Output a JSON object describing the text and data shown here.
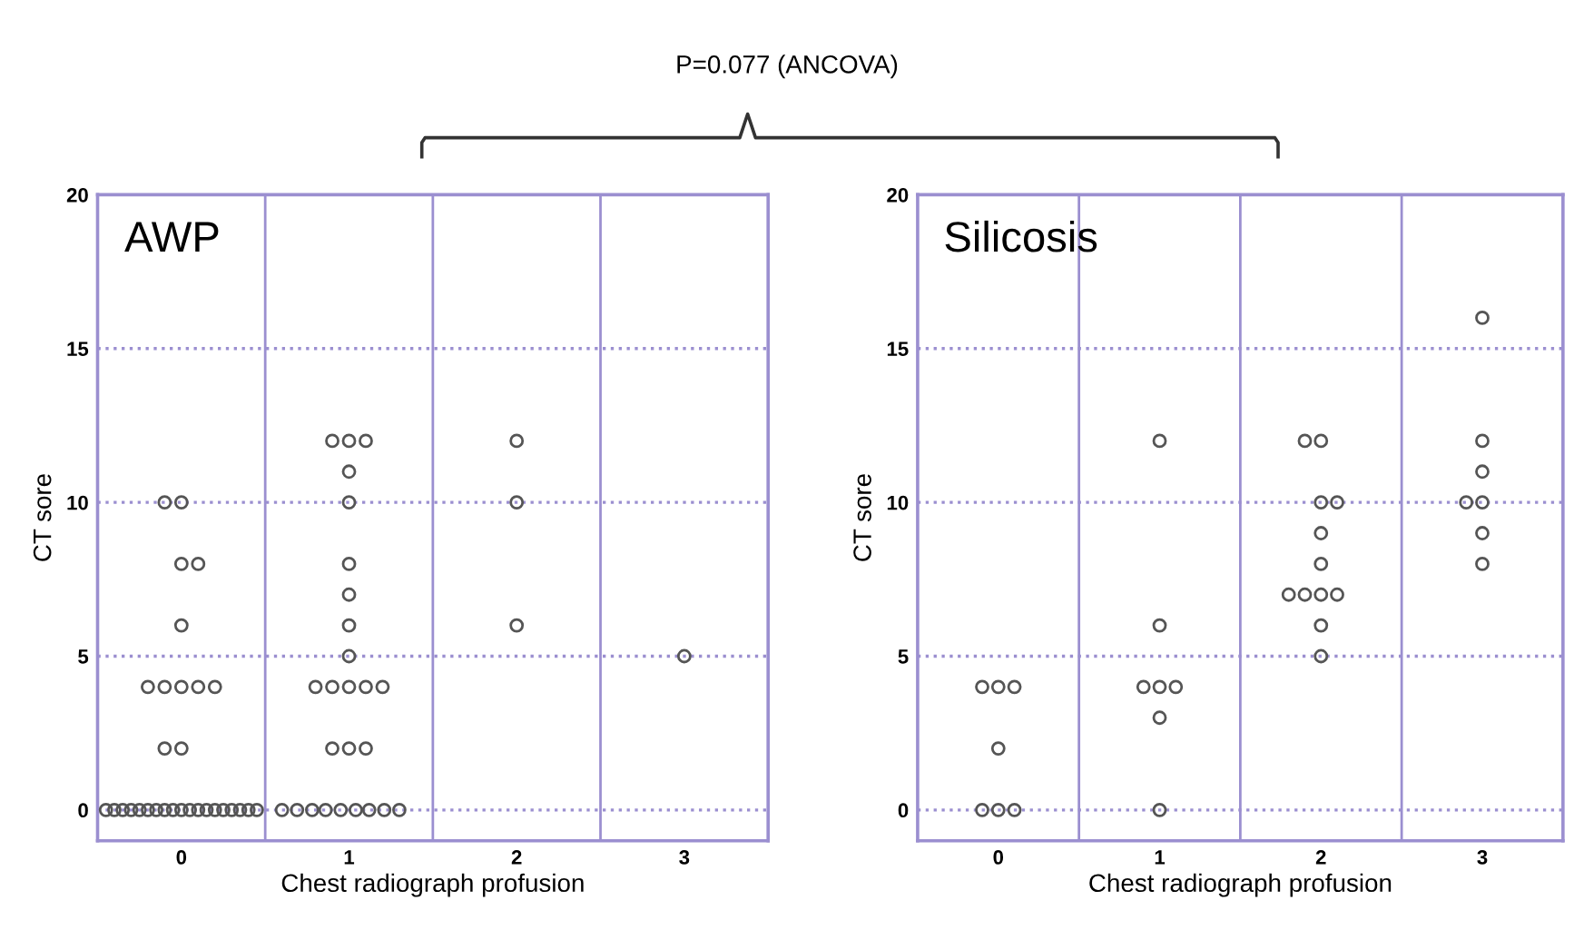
{
  "chart_data": [
    {
      "type": "scatter",
      "title": "AWP",
      "xlabel": "Chest radiograph profusion",
      "ylabel": "CT sore",
      "xlim": [
        -0.5,
        3.5
      ],
      "xticks": [
        0,
        1,
        2,
        3
      ],
      "ylim": [
        -1,
        20
      ],
      "yticks": [
        0,
        5,
        10,
        15,
        20
      ],
      "grid": "y",
      "marker": "circle",
      "annotations": [
        "P=0.077 (ANCOVA)"
      ],
      "ref_lines": [
        {
          "axis": "x",
          "value": 0.5,
          "label": null
        },
        {
          "axis": "x",
          "value": 1.5,
          "label": null
        },
        {
          "axis": "x",
          "value": 2.5,
          "label": null
        }
      ],
      "series": [
        {
          "color": "#555555",
          "x": [
            -0.1,
            0,
            0,
            0.1,
            0,
            -0.2,
            -0.1,
            0,
            0.1,
            0.2,
            -0.1,
            0,
            -0.45,
            -0.4,
            -0.35,
            -0.3,
            -0.25,
            -0.2,
            -0.15,
            -0.1,
            -0.05,
            0,
            0.05,
            0.1,
            0.15,
            0.2,
            0.25,
            0.3,
            0.35,
            0.4,
            0.45,
            0.9,
            1,
            1.1,
            1,
            1,
            1,
            1,
            1,
            1,
            0.8,
            0.9,
            1,
            1.1,
            1.2,
            0.9,
            1,
            1.1,
            0.6,
            0.69,
            0.78,
            0.86,
            0.95,
            1.04,
            1.12,
            1.21,
            1.3,
            2,
            2,
            2,
            3
          ],
          "values": [
            10,
            10,
            8,
            8,
            6,
            4,
            4,
            4,
            4,
            4,
            2,
            2,
            0,
            0,
            0,
            0,
            0,
            0,
            0,
            0,
            0,
            0,
            0,
            0,
            0,
            0,
            0,
            0,
            0,
            0,
            0,
            12,
            12,
            12,
            11,
            10,
            8,
            7,
            6,
            5,
            4,
            4,
            4,
            4,
            4,
            2,
            2,
            2,
            0,
            0,
            0,
            0,
            0,
            0,
            0,
            0,
            0,
            12,
            10,
            6,
            5
          ]
        }
      ]
    },
    {
      "type": "scatter",
      "title": "Silicosis",
      "xlabel": "Chest radiograph profusion",
      "ylabel": "CT sore",
      "xlim": [
        -0.5,
        3.5
      ],
      "xticks": [
        0,
        1,
        2,
        3
      ],
      "ylim": [
        -1,
        20
      ],
      "yticks": [
        0,
        5,
        10,
        15,
        20
      ],
      "grid": "y",
      "marker": "circle",
      "ref_lines": [
        {
          "axis": "x",
          "value": 0.5,
          "label": null
        },
        {
          "axis": "x",
          "value": 1.5,
          "label": null
        },
        {
          "axis": "x",
          "value": 2.5,
          "label": null
        }
      ],
      "series": [
        {
          "color": "#555555",
          "x": [
            -0.1,
            0,
            0.1,
            0,
            -0.1,
            0,
            0.1,
            1,
            1,
            0.9,
            1,
            1.1,
            1,
            1,
            1.9,
            2,
            2,
            2.1,
            2,
            2,
            1.8,
            1.9,
            2,
            2.1,
            2,
            2,
            3,
            3,
            3,
            2.9,
            3,
            3,
            3
          ],
          "values": [
            4,
            4,
            4,
            2,
            0,
            0,
            0,
            12,
            6,
            4,
            4,
            4,
            3,
            0,
            12,
            12,
            10,
            10,
            9,
            8,
            7,
            7,
            7,
            7,
            6,
            5,
            16,
            12,
            11,
            10,
            10,
            9,
            8
          ]
        }
      ]
    }
  ]
}
